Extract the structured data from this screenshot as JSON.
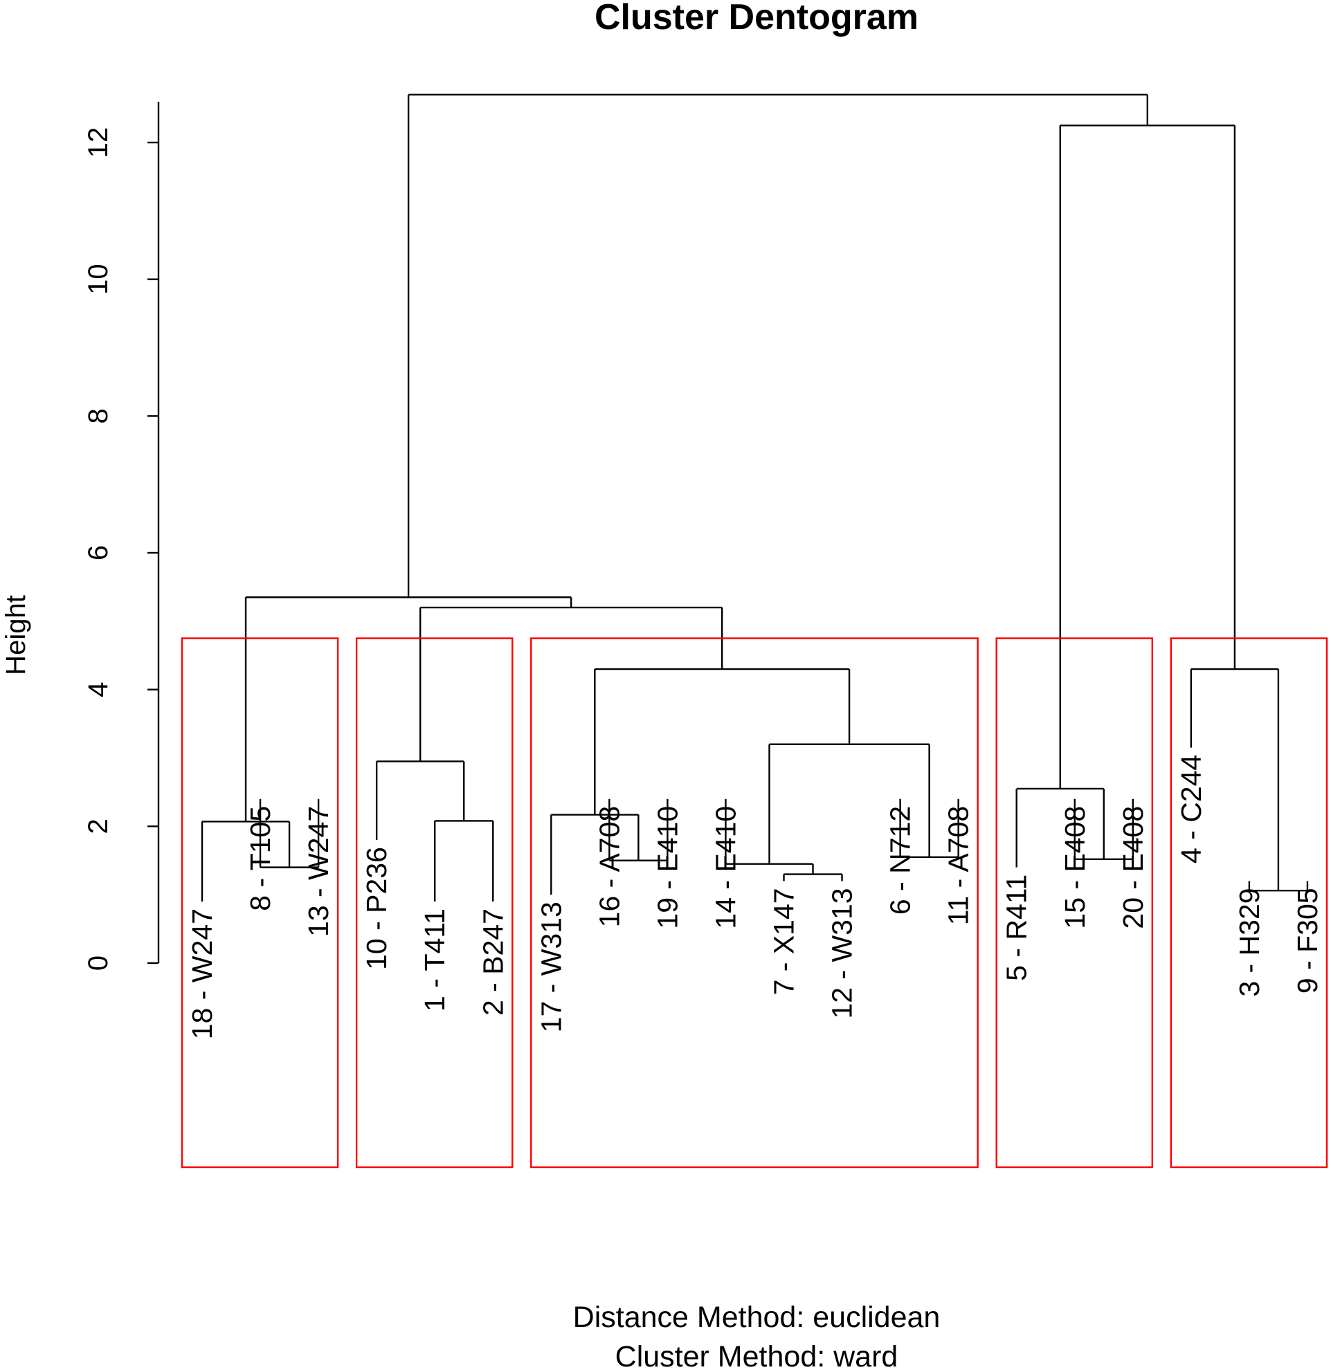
{
  "chart_data": {
    "type": "dendrogram",
    "title": "Cluster Dentogram",
    "ylabel": "Height",
    "xlabel_lines": [
      "Distance Method: euclidean",
      "Cluster Method: ward"
    ],
    "ylim": [
      0,
      13
    ],
    "yticks": [
      0,
      2,
      4,
      6,
      8,
      10,
      12
    ],
    "leaves": [
      "18 - W247",
      "8 - T105",
      "13 - W247",
      "10 - P236",
      "1 - T411",
      "2 - B247",
      "17 - W313",
      "16 - A708",
      "19 - E410",
      "14 - E410",
      "7 - X147",
      "12 - W313",
      "6 - N712",
      "11 - A708",
      "5 - R411",
      "15 - E408",
      "20 - E408",
      "4 - C244",
      "3 - H329",
      "9 - F305"
    ],
    "leaf_heights": [
      0.9,
      2.4,
      2.4,
      1.8,
      0.9,
      0.9,
      1.0,
      2.4,
      2.4,
      2.4,
      1.2,
      1.2,
      2.4,
      2.4,
      1.4,
      2.4,
      2.4,
      3.15,
      1.2,
      1.2
    ],
    "merges": [
      {
        "left": "L1",
        "right": "L2",
        "height": 1.4
      },
      {
        "left": "L0",
        "right": "M0",
        "height": 2.07
      },
      {
        "left": "L4",
        "right": "L5",
        "height": 2.08
      },
      {
        "left": "L3",
        "right": "M2",
        "height": 2.95
      },
      {
        "left": "L7",
        "right": "L8",
        "height": 1.5
      },
      {
        "left": "L6",
        "right": "M4",
        "height": 2.17
      },
      {
        "left": "L10",
        "right": "L11",
        "height": 1.3
      },
      {
        "left": "L9",
        "right": "M6",
        "height": 1.45
      },
      {
        "left": "L12",
        "right": "L13",
        "height": 1.55
      },
      {
        "left": "M7",
        "right": "M8",
        "height": 3.2
      },
      {
        "left": "M5",
        "right": "M9",
        "height": 4.3
      },
      {
        "left": "M3",
        "right": "M10",
        "height": 5.2
      },
      {
        "left": "M1",
        "right": "M11",
        "height": 5.35
      },
      {
        "left": "L15",
        "right": "L16",
        "height": 1.52
      },
      {
        "left": "L14",
        "right": "M13",
        "height": 2.55
      },
      {
        "left": "L18",
        "right": "L19",
        "height": 1.06
      },
      {
        "left": "L17",
        "right": "M15",
        "height": 4.3
      },
      {
        "left": "M14",
        "right": "M16",
        "height": 12.25
      },
      {
        "left": "M12",
        "right": "M17",
        "height": 12.7
      }
    ],
    "cluster_boxes": [
      {
        "first_leaf": 0,
        "last_leaf": 2
      },
      {
        "first_leaf": 3,
        "last_leaf": 5
      },
      {
        "first_leaf": 6,
        "last_leaf": 13
      },
      {
        "first_leaf": 14,
        "last_leaf": 16
      },
      {
        "first_leaf": 17,
        "last_leaf": 19
      }
    ],
    "box_top_height": 4.75,
    "colors": {
      "tree": "#000000",
      "box": "#ff0000"
    }
  }
}
